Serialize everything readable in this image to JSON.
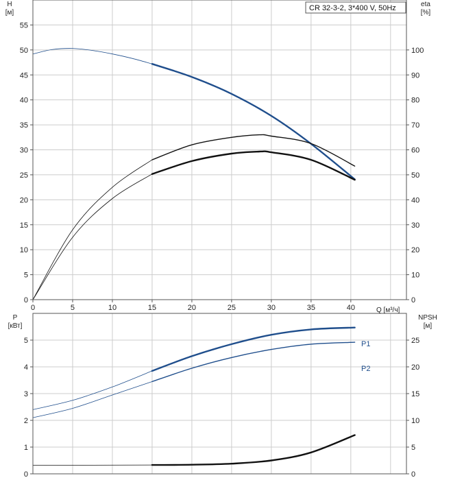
{
  "title": "CR 32-3-2, 3*400 V, 50Hz",
  "colors": {
    "blue": "#1f4e8c",
    "black": "#111111",
    "grid": "#cccccc",
    "frame": "#555555"
  },
  "top": {
    "ylabel_left": "H",
    "ylabel_left_unit": "[м]",
    "ylabel_right": "eta",
    "ylabel_right_unit": "[%]",
    "xlabel": "Q [м³/ч]"
  },
  "bottom": {
    "ylabel_left": "P",
    "ylabel_left_unit": "[кВт]",
    "ylabel_right": "NPSH",
    "ylabel_right_unit": "[м]"
  },
  "chart_data": [
    {
      "type": "line",
      "panel": "top",
      "xlim": [
        0,
        47
      ],
      "ylim": [
        0,
        60
      ],
      "y2lim": [
        0,
        120
      ],
      "xticks": [
        0,
        5,
        10,
        15,
        20,
        25,
        30,
        35,
        40
      ],
      "yticks": [
        0,
        5,
        10,
        15,
        20,
        25,
        30,
        35,
        40,
        45,
        50,
        55
      ],
      "y2ticks": [
        0,
        10,
        20,
        30,
        40,
        50,
        60,
        70,
        80,
        90,
        100
      ],
      "grid": true,
      "series": [
        {
          "axis": "left",
          "color": "blue",
          "style": "thin",
          "x": [
            0,
            2.5,
            5,
            7.5,
            10,
            12.5,
            15
          ],
          "y": [
            49.2,
            50.1,
            50.3,
            49.9,
            49.2,
            48.3,
            47.2
          ]
        },
        {
          "axis": "left",
          "color": "blue",
          "style": "thick",
          "x": [
            15,
            20,
            25,
            30,
            35,
            40.5
          ],
          "y": [
            47.2,
            44.6,
            41.2,
            36.8,
            31.2,
            24.1
          ]
        },
        {
          "axis": "right",
          "color": "black",
          "style": "thin",
          "x": [
            0,
            5,
            10,
            15
          ],
          "y": [
            0,
            28,
            45,
            56
          ]
        },
        {
          "axis": "right",
          "color": "black",
          "style": "medium",
          "x": [
            15,
            20,
            25,
            28.5,
            30,
            35,
            40.5
          ],
          "y": [
            56,
            62,
            65,
            66,
            65.5,
            62.5,
            53.5
          ]
        },
        {
          "axis": "right",
          "color": "black",
          "style": "thin",
          "x": [
            0,
            5,
            10,
            15
          ],
          "y": [
            0,
            25,
            40.5,
            50.3
          ]
        },
        {
          "axis": "right",
          "color": "black",
          "style": "thick",
          "x": [
            15,
            20,
            25,
            28.5,
            30,
            35,
            40.5
          ],
          "y": [
            50.3,
            55.5,
            58.5,
            59.3,
            59,
            56,
            48
          ]
        }
      ]
    },
    {
      "type": "line",
      "panel": "bottom",
      "xlim": [
        0,
        47
      ],
      "ylim": [
        0,
        6
      ],
      "y2lim": [
        0,
        30
      ],
      "yticks": [
        0,
        1,
        2,
        3,
        4,
        5
      ],
      "y2ticks": [
        0,
        5,
        10,
        15,
        20,
        25
      ],
      "grid": true,
      "series": [
        {
          "name": "P1",
          "axis": "left",
          "color": "blue",
          "style": "thin",
          "x": [
            0,
            5,
            10,
            15
          ],
          "y": [
            2.4,
            2.75,
            3.25,
            3.85
          ]
        },
        {
          "name": "P1",
          "axis": "left",
          "color": "blue",
          "style": "thick",
          "x": [
            15,
            20,
            25,
            30,
            35,
            40.5
          ],
          "y": [
            3.85,
            4.4,
            4.85,
            5.2,
            5.4,
            5.47
          ]
        },
        {
          "axis": "left",
          "color": "blue",
          "style": "thin",
          "x": [
            0,
            5,
            10,
            15
          ],
          "y": [
            2.1,
            2.45,
            2.95,
            3.45
          ]
        },
        {
          "name": "P2",
          "axis": "left",
          "color": "blue",
          "style": "medium",
          "x": [
            15,
            20,
            25,
            30,
            35,
            40.5
          ],
          "y": [
            3.45,
            3.95,
            4.35,
            4.65,
            4.85,
            4.92
          ]
        },
        {
          "axis": "right",
          "color": "black",
          "style": "thin",
          "x": [
            0,
            15
          ],
          "y": [
            1.6,
            1.65
          ]
        },
        {
          "axis": "right",
          "color": "black",
          "style": "thick",
          "x": [
            15,
            20,
            25,
            30,
            35,
            40.5
          ],
          "y": [
            1.65,
            1.7,
            1.9,
            2.5,
            4.0,
            7.25
          ]
        }
      ]
    }
  ]
}
